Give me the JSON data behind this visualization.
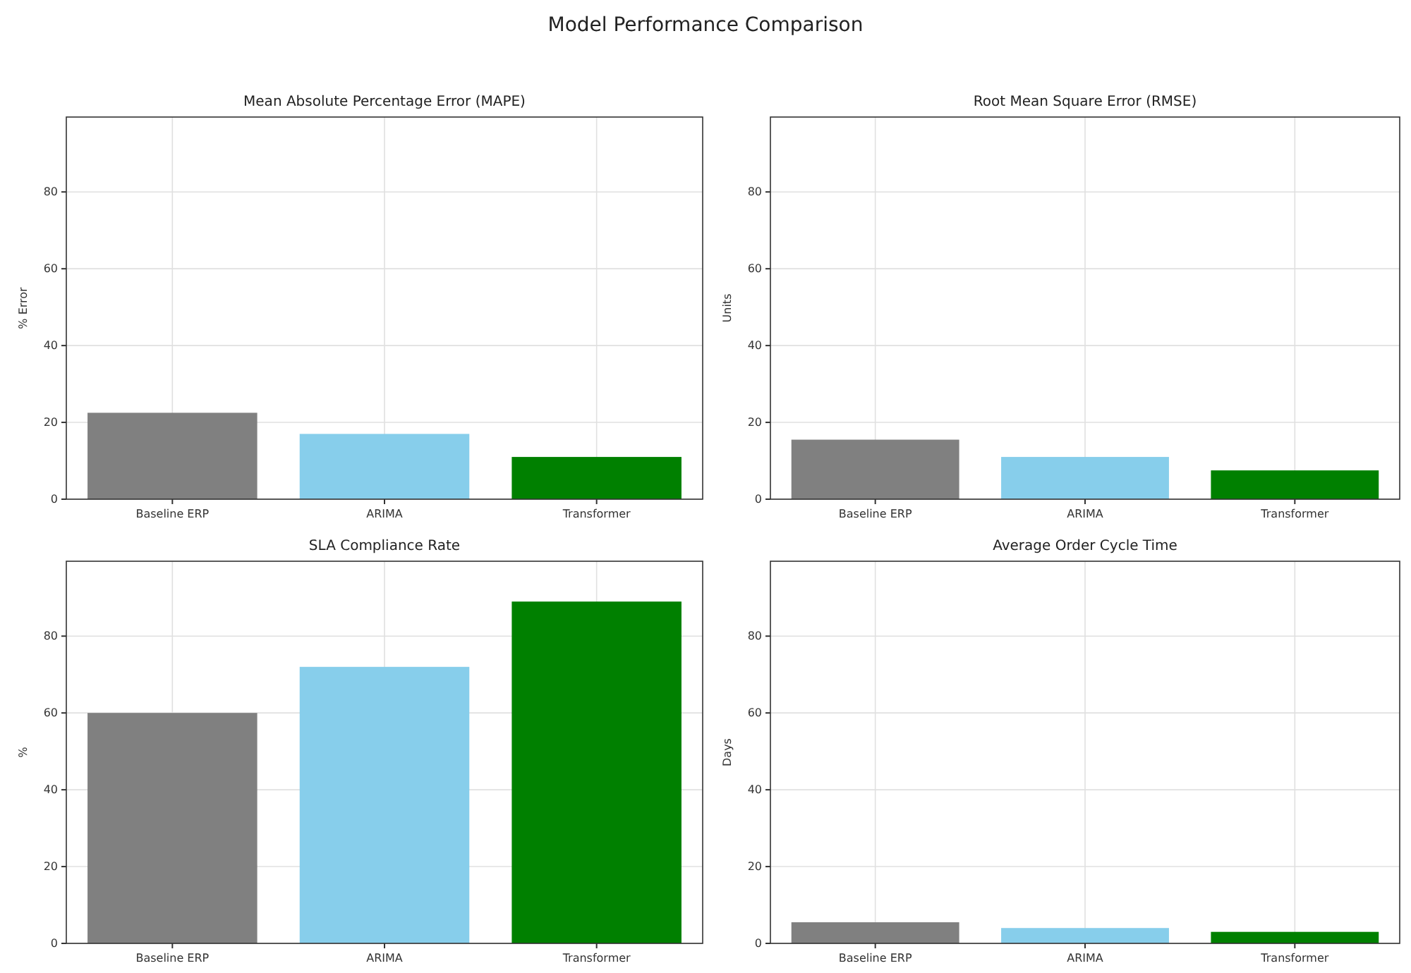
{
  "chart_data": [
    {
      "type": "other",
      "title": "Model Performance Comparison"
    },
    {
      "type": "bar",
      "title": "Mean Absolute Percentage Error (MAPE)",
      "ylabel": "% Error",
      "categories": [
        "Baseline ERP",
        "ARIMA",
        "Transformer"
      ],
      "values": [
        22.5,
        17,
        11
      ],
      "colors": [
        "#808080",
        "#87ceeb",
        "#008000"
      ],
      "ylim": [
        0,
        99.5
      ],
      "yticks": [
        0,
        20,
        40,
        60,
        80
      ],
      "grid": true
    },
    {
      "type": "bar",
      "title": "Root Mean Square Error (RMSE)",
      "ylabel": "Units",
      "categories": [
        "Baseline ERP",
        "ARIMA",
        "Transformer"
      ],
      "values": [
        15.5,
        11,
        7.5
      ],
      "colors": [
        "#808080",
        "#87ceeb",
        "#008000"
      ],
      "ylim": [
        0,
        99.5
      ],
      "yticks": [
        0,
        20,
        40,
        60,
        80
      ],
      "grid": true
    },
    {
      "type": "bar",
      "title": "SLA Compliance Rate",
      "ylabel": "%",
      "categories": [
        "Baseline ERP",
        "ARIMA",
        "Transformer"
      ],
      "values": [
        60,
        72,
        89
      ],
      "colors": [
        "#808080",
        "#87ceeb",
        "#008000"
      ],
      "ylim": [
        0,
        99.5
      ],
      "yticks": [
        0,
        20,
        40,
        60,
        80
      ],
      "grid": true
    },
    {
      "type": "bar",
      "title": "Average Order Cycle Time",
      "ylabel": "Days",
      "categories": [
        "Baseline ERP",
        "ARIMA",
        "Transformer"
      ],
      "values": [
        5.5,
        4,
        3
      ],
      "colors": [
        "#808080",
        "#87ceeb",
        "#008000"
      ],
      "ylim": [
        0,
        99.5
      ],
      "yticks": [
        0,
        20,
        40,
        60,
        80
      ],
      "grid": true
    }
  ]
}
